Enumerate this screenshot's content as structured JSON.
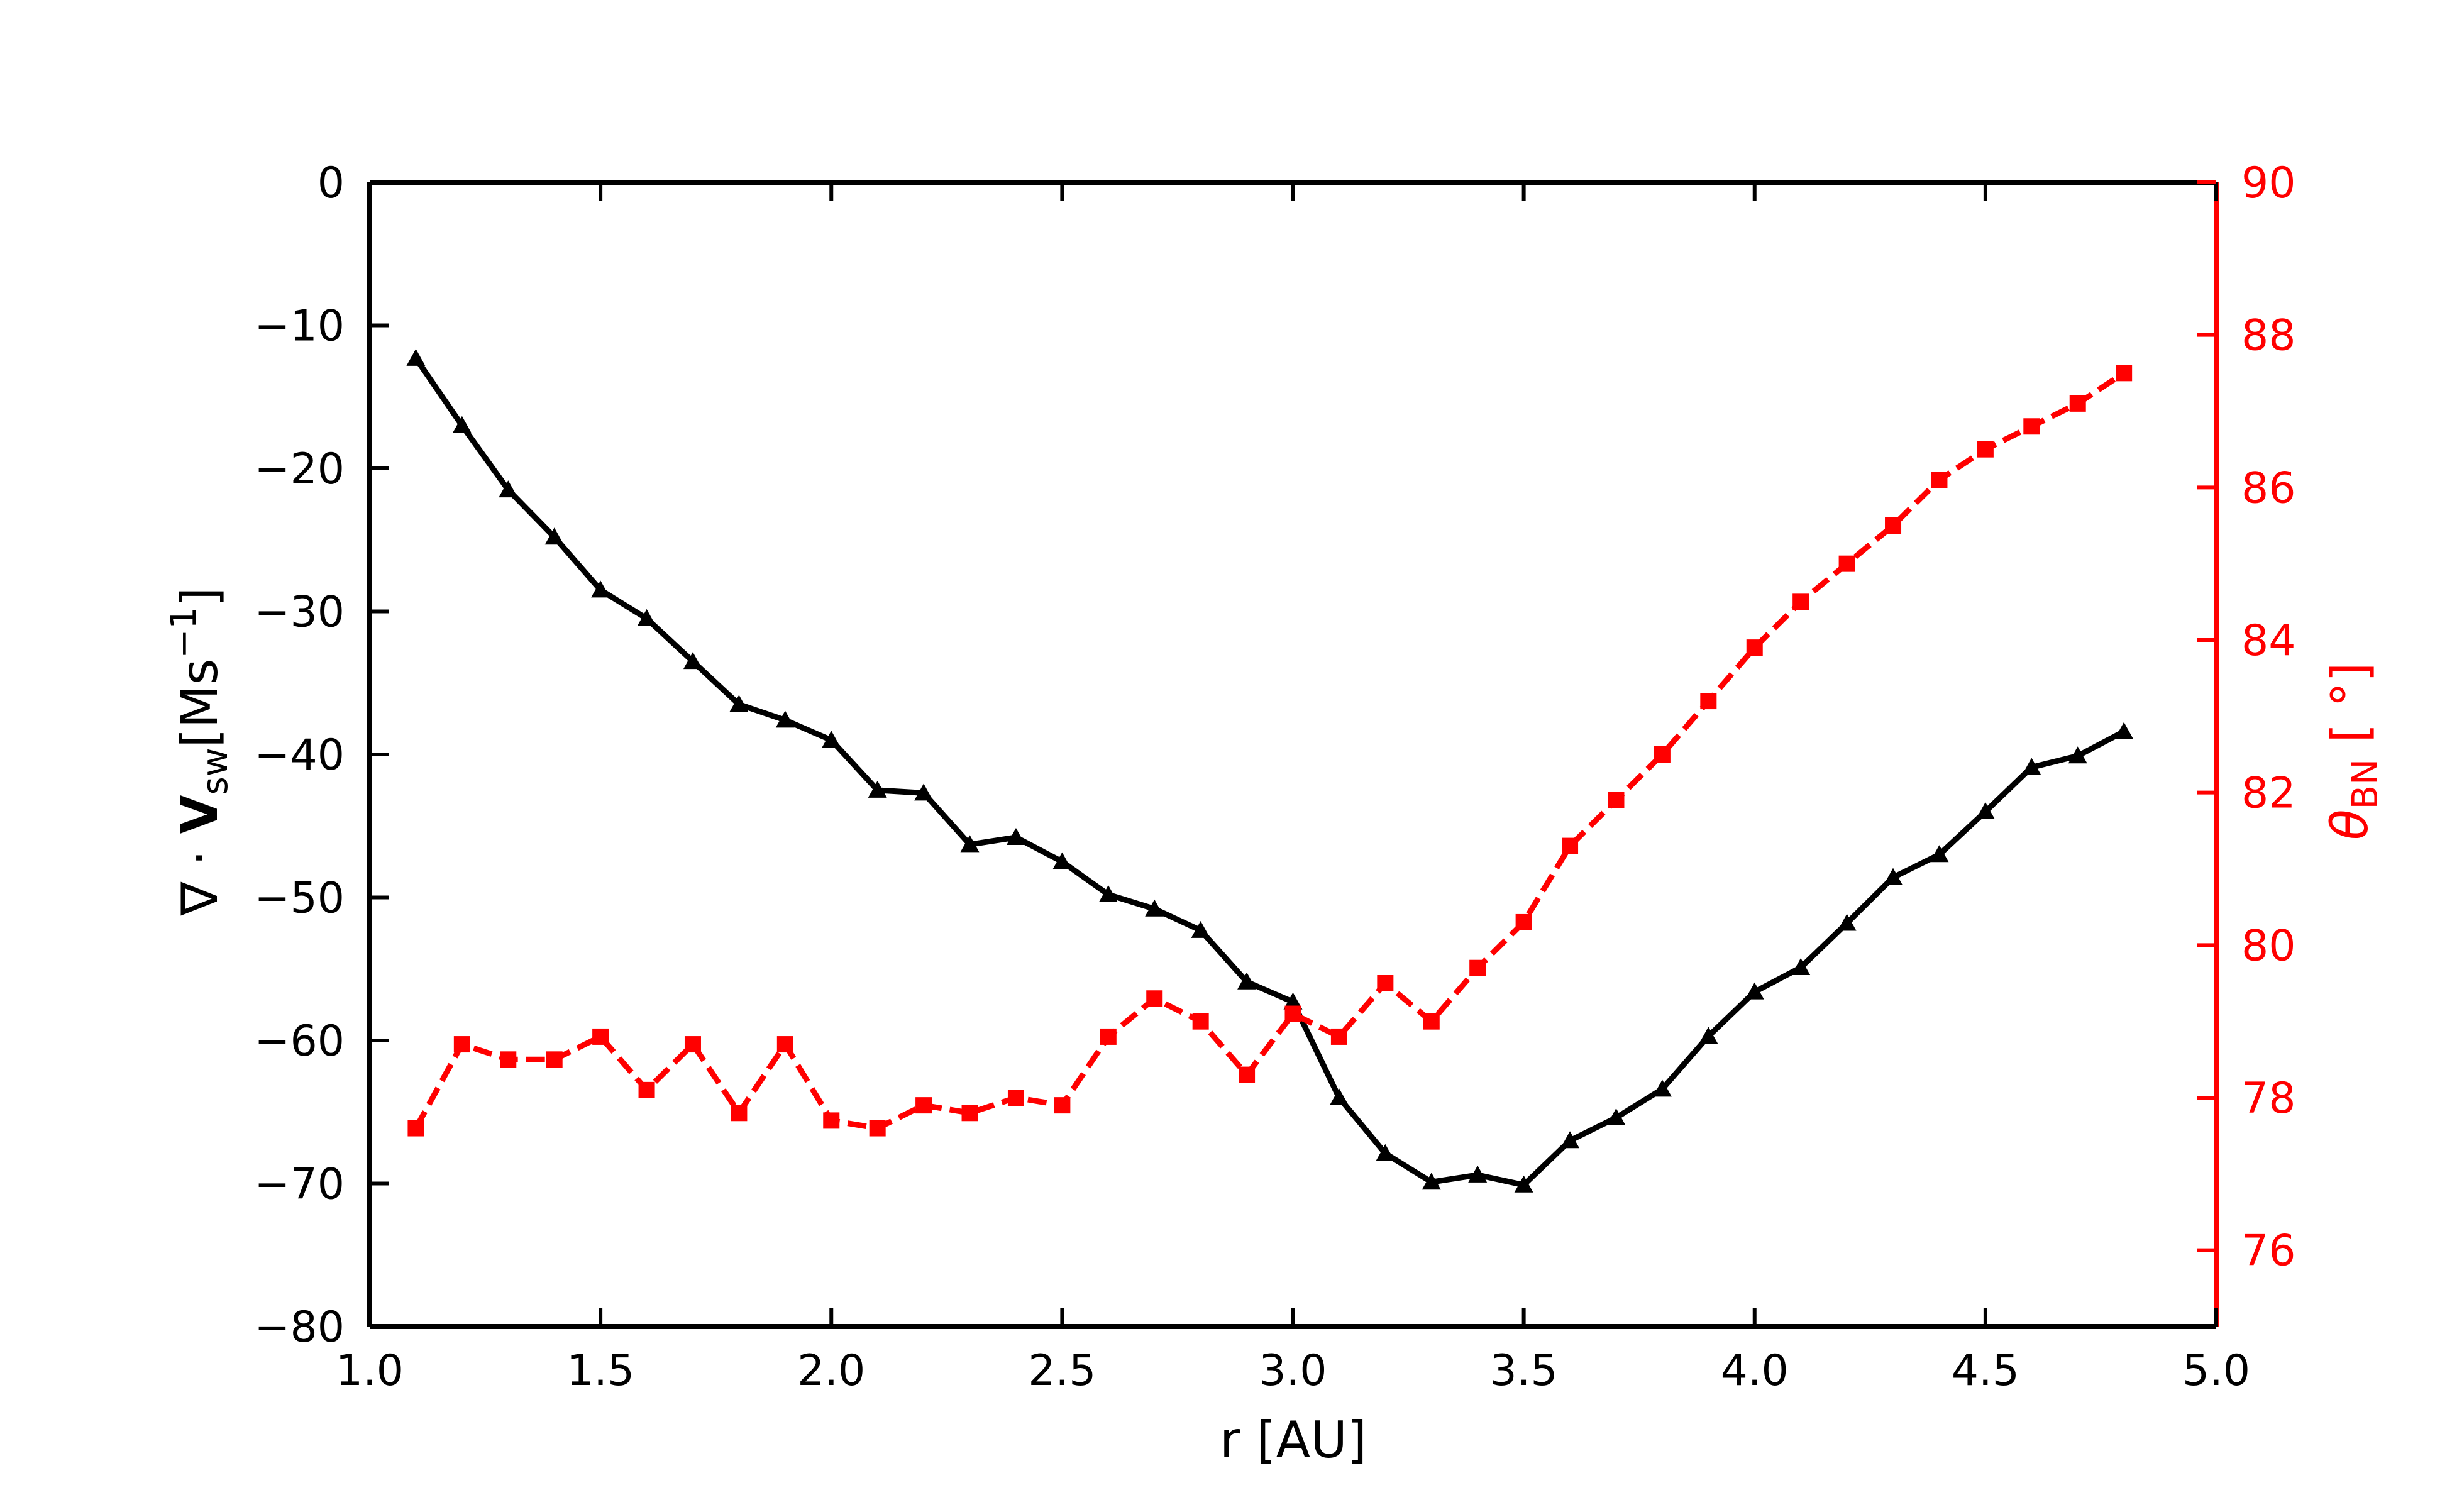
{
  "chart_data": {
    "type": "line",
    "title": "",
    "xlabel": "r [AU]",
    "xlim": [
      1.0,
      5.0
    ],
    "x_ticks": [
      "1.0",
      "1.5",
      "2.0",
      "2.5",
      "3.0",
      "3.5",
      "4.0",
      "4.5",
      "5.0"
    ],
    "ylabel_left": "∇ · V_sw [Ms⁻¹]",
    "ylim_left": [
      -80,
      0
    ],
    "y_ticks_left": [
      "0",
      "−10",
      "−20",
      "−30",
      "−40",
      "−50",
      "−60",
      "−70",
      "−80"
    ],
    "ylabel_right": "θ_BN [°]",
    "ylim_right": [
      75,
      90
    ],
    "y_ticks_right": [
      "76",
      "78",
      "80",
      "82",
      "84",
      "86",
      "88",
      "90"
    ],
    "grid": false,
    "legend": "none",
    "x": [
      1.1,
      1.2,
      1.3,
      1.4,
      1.5,
      1.6,
      1.7,
      1.8,
      1.9,
      2.0,
      2.1,
      2.2,
      2.3,
      2.4,
      2.5,
      2.6,
      2.7,
      2.8,
      2.9,
      3.0,
      3.1,
      3.2,
      3.3,
      3.4,
      3.5,
      3.6,
      3.7,
      3.8,
      3.9,
      4.0,
      4.1,
      4.2,
      4.3,
      4.4,
      4.5,
      4.6,
      4.7,
      4.8
    ],
    "series": [
      {
        "axis": "left",
        "color": "#000000",
        "line_style": "solid",
        "marker": "triangle",
        "values": [
          -12.3,
          -17.0,
          -21.5,
          -24.8,
          -28.5,
          -30.5,
          -33.5,
          -36.5,
          -37.6,
          -39.0,
          -42.5,
          -42.7,
          -46.3,
          -45.8,
          -47.5,
          -49.8,
          -50.8,
          -52.3,
          -55.9,
          -57.3,
          -64.0,
          -67.9,
          -69.9,
          -69.4,
          -70.1,
          -67.0,
          -65.4,
          -63.4,
          -59.7,
          -56.6,
          -54.9,
          -51.8,
          -48.6,
          -47.0,
          -44.0,
          -40.9,
          -40.1,
          -38.4
        ]
      },
      {
        "axis": "right",
        "color": "#ff0000",
        "line_style": "dashed",
        "marker": "square",
        "values": [
          77.6,
          78.7,
          78.5,
          78.5,
          78.8,
          78.1,
          78.7,
          77.8,
          78.7,
          77.7,
          77.6,
          77.9,
          77.8,
          78.0,
          77.9,
          78.8,
          79.3,
          79.0,
          78.3,
          79.1,
          78.8,
          79.5,
          79.0,
          79.7,
          80.3,
          81.3,
          81.9,
          82.5,
          83.2,
          83.9,
          84.5,
          85.0,
          85.5,
          86.1,
          86.5,
          86.8,
          87.1,
          87.5
        ]
      }
    ]
  }
}
